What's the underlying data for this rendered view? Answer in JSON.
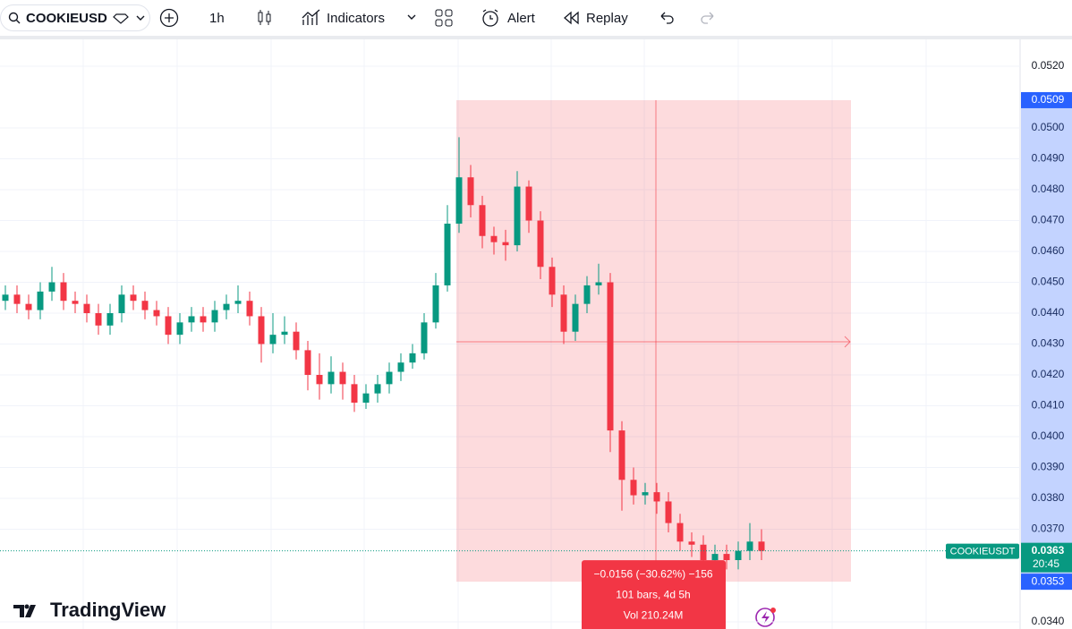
{
  "toolbar": {
    "symbol": "COOKIEUSD",
    "interval": "1h",
    "indicators": "Indicators",
    "alert": "Alert",
    "replay": "Replay"
  },
  "logo": "TradingView",
  "chart_data": {
    "type": "candlestick",
    "up_color": "#089981",
    "down_color": "#f23645",
    "open": [
      0.0444,
      0.0446,
      0.0443,
      0.0441,
      0.0447,
      0.045,
      0.0444,
      0.0443,
      0.044,
      0.0436,
      0.044,
      0.0446,
      0.0444,
      0.0441,
      0.0439,
      0.0433,
      0.0437,
      0.0439,
      0.0437,
      0.0441,
      0.0443,
      0.0444,
      0.0439,
      0.043,
      0.0433,
      0.0434,
      0.0428,
      0.042,
      0.0417,
      0.0421,
      0.0417,
      0.0411,
      0.0414,
      0.0417,
      0.0421,
      0.0424,
      0.0427,
      0.0437,
      0.0449,
      0.0469,
      0.0484,
      0.0475,
      0.0465,
      0.0463,
      0.0462,
      0.0481,
      0.047,
      0.0455,
      0.0446,
      0.0434,
      0.0443,
      0.0449,
      0.045,
      0.0402,
      0.0386,
      0.0381,
      0.0382,
      0.0379,
      0.0372,
      0.0366,
      0.0365,
      0.036,
      0.0362,
      0.036,
      0.0363,
      0.0366
    ],
    "high": [
      0.0449,
      0.0449,
      0.0446,
      0.045,
      0.0455,
      0.0453,
      0.0447,
      0.0446,
      0.0443,
      0.0443,
      0.0449,
      0.0449,
      0.0447,
      0.0444,
      0.0442,
      0.044,
      0.0442,
      0.0442,
      0.0444,
      0.0446,
      0.0449,
      0.0447,
      0.0442,
      0.044,
      0.0439,
      0.0437,
      0.0431,
      0.0427,
      0.0426,
      0.0424,
      0.042,
      0.0417,
      0.042,
      0.0424,
      0.0427,
      0.043,
      0.044,
      0.0453,
      0.0475,
      0.0497,
      0.0488,
      0.0478,
      0.0468,
      0.0467,
      0.0486,
      0.0483,
      0.0473,
      0.0458,
      0.0449,
      0.0446,
      0.0452,
      0.0456,
      0.0453,
      0.0405,
      0.039,
      0.0385,
      0.0385,
      0.0382,
      0.0375,
      0.0369,
      0.0368,
      0.0365,
      0.0365,
      0.0366,
      0.0372,
      0.037
    ],
    "low": [
      0.0441,
      0.044,
      0.0438,
      0.0438,
      0.0444,
      0.0441,
      0.044,
      0.0437,
      0.0433,
      0.0433,
      0.0437,
      0.0441,
      0.0438,
      0.0436,
      0.043,
      0.043,
      0.0434,
      0.0434,
      0.0434,
      0.0438,
      0.044,
      0.0436,
      0.0424,
      0.0427,
      0.043,
      0.0425,
      0.0415,
      0.0412,
      0.0414,
      0.0412,
      0.0408,
      0.0409,
      0.0411,
      0.0414,
      0.0418,
      0.0422,
      0.0425,
      0.0435,
      0.0447,
      0.0466,
      0.0471,
      0.0461,
      0.0459,
      0.0457,
      0.046,
      0.0466,
      0.0451,
      0.0442,
      0.043,
      0.0431,
      0.044,
      0.0446,
      0.0395,
      0.0376,
      0.0378,
      0.0378,
      0.0375,
      0.0369,
      0.0363,
      0.0361,
      0.0357,
      0.0357,
      0.0357,
      0.0357,
      0.036,
      0.036
    ],
    "close": [
      0.0446,
      0.0443,
      0.0441,
      0.0447,
      0.045,
      0.0444,
      0.0443,
      0.044,
      0.0436,
      0.044,
      0.0446,
      0.0444,
      0.0441,
      0.0439,
      0.0433,
      0.0437,
      0.0439,
      0.0437,
      0.0441,
      0.0443,
      0.0444,
      0.0439,
      0.043,
      0.0433,
      0.0434,
      0.0428,
      0.042,
      0.0417,
      0.0421,
      0.0417,
      0.0411,
      0.0414,
      0.0417,
      0.0421,
      0.0424,
      0.0427,
      0.0437,
      0.0449,
      0.0469,
      0.0484,
      0.0475,
      0.0465,
      0.0463,
      0.0462,
      0.0481,
      0.047,
      0.0455,
      0.0446,
      0.0434,
      0.0443,
      0.0449,
      0.045,
      0.0402,
      0.0386,
      0.0381,
      0.0382,
      0.0379,
      0.0372,
      0.0366,
      0.0365,
      0.036,
      0.0362,
      0.036,
      0.0363,
      0.0366,
      0.0363
    ],
    "ylim": [
      0.03376,
      0.052
    ],
    "yticks": [
      {
        "value": 0.052,
        "label": "0.0520"
      },
      {
        "value": 0.05,
        "label": "0.0500"
      },
      {
        "value": 0.049,
        "label": "0.0490"
      },
      {
        "value": 0.048,
        "label": "0.0480"
      },
      {
        "value": 0.047,
        "label": "0.0470"
      },
      {
        "value": 0.046,
        "label": "0.0460"
      },
      {
        "value": 0.045,
        "label": "0.0450"
      },
      {
        "value": 0.044,
        "label": "0.0440"
      },
      {
        "value": 0.043,
        "label": "0.0430"
      },
      {
        "value": 0.042,
        "label": "0.0420"
      },
      {
        "value": 0.041,
        "label": "0.0410"
      },
      {
        "value": 0.04,
        "label": "0.0400"
      },
      {
        "value": 0.039,
        "label": "0.0390"
      },
      {
        "value": 0.038,
        "label": "0.0380"
      },
      {
        "value": 0.037,
        "label": "0.0370"
      },
      {
        "value": 0.034,
        "label": "0.0340"
      }
    ],
    "grid": true,
    "measure": {
      "from": {
        "value": 0.0509,
        "label": "0.0509"
      },
      "to": {
        "value": 0.0353,
        "label": "0.0353"
      },
      "lines": [
        "−0.0156 (−30.62%) −156",
        "101 bars, 4d 5h",
        "Vol 210.24M"
      ]
    },
    "last_price": {
      "value": 0.0363,
      "label": "0.0363",
      "symbol": "COOKIEUSDT",
      "countdown": "20:45"
    }
  }
}
